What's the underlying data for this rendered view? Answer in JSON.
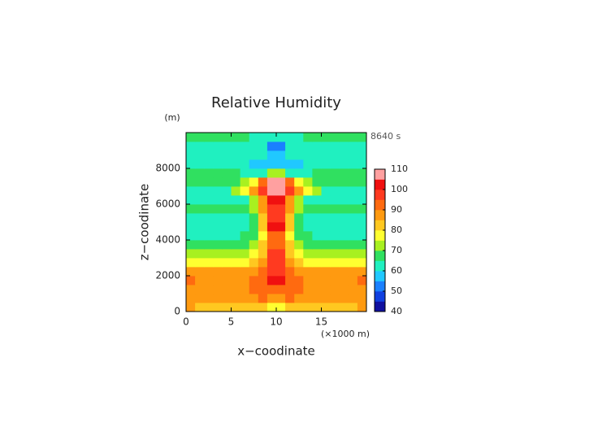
{
  "chart_data": {
    "type": "contourf",
    "title": "Relative Humidity",
    "y_unit": "(m)",
    "time_label": "8640 s",
    "x_label": "x−coodinate",
    "y_label": "z−coodinate",
    "x_unit": "(×1000 m)",
    "xlim": [
      0,
      20
    ],
    "ylim": [
      0,
      10000
    ],
    "xticks": [
      0,
      5,
      10,
      15
    ],
    "yticks": [
      0,
      2000,
      4000,
      6000,
      8000
    ],
    "x": [
      0.5,
      1.5,
      2.5,
      3.5,
      4.5,
      5.5,
      6.5,
      7.5,
      8.5,
      9.5,
      10.5,
      11.5,
      12.5,
      13.5,
      14.5,
      15.5,
      16.5,
      17.5,
      18.5,
      19.5
    ],
    "y": [
      250,
      750,
      1250,
      1750,
      2250,
      2750,
      3250,
      3750,
      4250,
      4750,
      5250,
      5750,
      6250,
      6750,
      7250,
      7750,
      8250,
      8750,
      9250,
      9750
    ],
    "z": [
      [
        85,
        84,
        84,
        84,
        84,
        84,
        84,
        83,
        80,
        75,
        75,
        80,
        83,
        84,
        84,
        84,
        84,
        84,
        84,
        85
      ],
      [
        88,
        88,
        88,
        88,
        88,
        88,
        88,
        88,
        90,
        88,
        88,
        90,
        88,
        88,
        88,
        88,
        88,
        88,
        88,
        88
      ],
      [
        89,
        88,
        88,
        88,
        88,
        88,
        88,
        90,
        92,
        93,
        93,
        92,
        90,
        88,
        88,
        88,
        88,
        88,
        88,
        89
      ],
      [
        90,
        88,
        88,
        88,
        88,
        88,
        88,
        90,
        92,
        100,
        100,
        92,
        90,
        88,
        88,
        88,
        88,
        88,
        88,
        90
      ],
      [
        87,
        86,
        86,
        86,
        86,
        86,
        86,
        88,
        91,
        95,
        95,
        91,
        88,
        86,
        86,
        86,
        86,
        86,
        86,
        87
      ],
      [
        78,
        78,
        78,
        78,
        78,
        78,
        79,
        82,
        88,
        98,
        98,
        88,
        82,
        79,
        78,
        78,
        78,
        78,
        78,
        78
      ],
      [
        73,
        73,
        73,
        73,
        73,
        73,
        74,
        77,
        84,
        95,
        95,
        84,
        77,
        74,
        73,
        73,
        73,
        73,
        73,
        73
      ],
      [
        68,
        68,
        68,
        68,
        68,
        68,
        69,
        72,
        80,
        90,
        90,
        80,
        72,
        69,
        68,
        68,
        68,
        68,
        68,
        68
      ],
      [
        64,
        64,
        64,
        64,
        64,
        64,
        65,
        68,
        78,
        93,
        93,
        78,
        68,
        65,
        64,
        64,
        64,
        64,
        64,
        64
      ],
      [
        62,
        62,
        62,
        62,
        62,
        62,
        63,
        67,
        80,
        100,
        100,
        80,
        67,
        63,
        62,
        62,
        62,
        62,
        62,
        62
      ],
      [
        63,
        63,
        63,
        63,
        63,
        63,
        64,
        68,
        82,
        97,
        97,
        82,
        68,
        64,
        63,
        63,
        63,
        63,
        63,
        63
      ],
      [
        66,
        66,
        66,
        66,
        66,
        66,
        67,
        70,
        85,
        98,
        98,
        85,
        70,
        67,
        66,
        66,
        66,
        66,
        66,
        66
      ],
      [
        62,
        62,
        62,
        62,
        62,
        62,
        64,
        70,
        88,
        102,
        102,
        88,
        70,
        64,
        62,
        62,
        62,
        62,
        62,
        62
      ],
      [
        63,
        63,
        63,
        63,
        64,
        70,
        78,
        86,
        96,
        106,
        106,
        96,
        86,
        78,
        70,
        64,
        63,
        63,
        63,
        63
      ],
      [
        67,
        67,
        67,
        67,
        67,
        67,
        70,
        75,
        90,
        105,
        105,
        90,
        75,
        70,
        67,
        67,
        67,
        67,
        67,
        67
      ],
      [
        68,
        68,
        68,
        68,
        67,
        66,
        64,
        63,
        62,
        70,
        70,
        62,
        63,
        64,
        66,
        67,
        68,
        68,
        68,
        68
      ],
      [
        64,
        64,
        64,
        64,
        63,
        62,
        60,
        58,
        56,
        58,
        58,
        56,
        58,
        60,
        62,
        63,
        64,
        64,
        64,
        64
      ],
      [
        62,
        62,
        62,
        62,
        62,
        61,
        61,
        61,
        60,
        56,
        56,
        60,
        61,
        61,
        61,
        62,
        62,
        62,
        62,
        62
      ],
      [
        63,
        63,
        63,
        63,
        63,
        63,
        63,
        63,
        62,
        54,
        54,
        62,
        63,
        63,
        63,
        63,
        63,
        63,
        63,
        63
      ],
      [
        66,
        66,
        66,
        66,
        66,
        66,
        65,
        64,
        62,
        60,
        60,
        62,
        64,
        65,
        66,
        66,
        66,
        66,
        66,
        66
      ]
    ],
    "levels": [
      40,
      45,
      50,
      55,
      60,
      65,
      70,
      75,
      80,
      85,
      90,
      95,
      100,
      105,
      110
    ],
    "colors": [
      "#1010a0",
      "#1040e0",
      "#1a80ff",
      "#20c8ff",
      "#20f0c0",
      "#30e060",
      "#a8f020",
      "#ffff30",
      "#ffc820",
      "#ff9a10",
      "#ff6a10",
      "#ff3a20",
      "#f01010",
      "#ffa0a0"
    ],
    "colorbar_ticks": [
      40,
      50,
      60,
      70,
      80,
      90,
      100,
      110
    ]
  }
}
